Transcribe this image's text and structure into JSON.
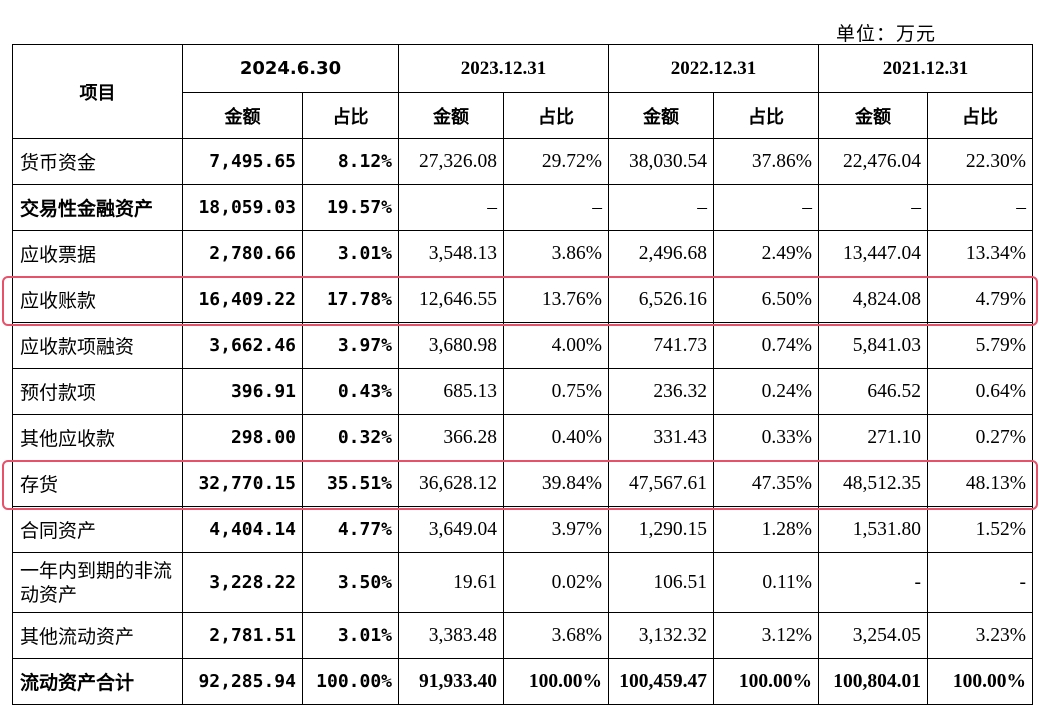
{
  "unit_label": "单位：万元",
  "header": {
    "item_label": "项目",
    "periods": [
      "2024.6.30",
      "2023.12.31",
      "2022.12.31",
      "2021.12.31"
    ],
    "amount_label": "金额",
    "ratio_label": "占比"
  },
  "rows": [
    {
      "label": "货币资金",
      "bold": false,
      "values": [
        "7,495.65",
        "8.12%",
        "27,326.08",
        "29.72%",
        "38,030.54",
        "37.86%",
        "22,476.04",
        "22.30%"
      ]
    },
    {
      "label": "交易性金融资产",
      "bold": true,
      "values": [
        "18,059.03",
        "19.57%",
        "–",
        "–",
        "–",
        "–",
        "–",
        "–"
      ]
    },
    {
      "label": "应收票据",
      "bold": false,
      "values": [
        "2,780.66",
        "3.01%",
        "3,548.13",
        "3.86%",
        "2,496.68",
        "2.49%",
        "13,447.04",
        "13.34%"
      ]
    },
    {
      "label": "应收账款",
      "bold": false,
      "highlight": true,
      "values": [
        "16,409.22",
        "17.78%",
        "12,646.55",
        "13.76%",
        "6,526.16",
        "6.50%",
        "4,824.08",
        "4.79%"
      ]
    },
    {
      "label": "应收款项融资",
      "bold": false,
      "values": [
        "3,662.46",
        "3.97%",
        "3,680.98",
        "4.00%",
        "741.73",
        "0.74%",
        "5,841.03",
        "5.79%"
      ]
    },
    {
      "label": "预付款项",
      "bold": false,
      "values": [
        "396.91",
        "0.43%",
        "685.13",
        "0.75%",
        "236.32",
        "0.24%",
        "646.52",
        "0.64%"
      ]
    },
    {
      "label": "其他应收款",
      "bold": false,
      "values": [
        "298.00",
        "0.32%",
        "366.28",
        "0.40%",
        "331.43",
        "0.33%",
        "271.10",
        "0.27%"
      ]
    },
    {
      "label": "存货",
      "bold": false,
      "highlight": true,
      "values": [
        "32,770.15",
        "35.51%",
        "36,628.12",
        "39.84%",
        "47,567.61",
        "47.35%",
        "48,512.35",
        "48.13%"
      ]
    },
    {
      "label": "合同资产",
      "bold": false,
      "values": [
        "4,404.14",
        "4.77%",
        "3,649.04",
        "3.97%",
        "1,290.15",
        "1.28%",
        "1,531.80",
        "1.52%"
      ]
    },
    {
      "label": "一年内到期的非流动资产",
      "bold": false,
      "wrap": true,
      "values": [
        "3,228.22",
        "3.50%",
        "19.61",
        "0.02%",
        "106.51",
        "0.11%",
        "-",
        "-"
      ]
    },
    {
      "label": "其他流动资产",
      "bold": false,
      "values": [
        "2,781.51",
        "3.01%",
        "3,383.48",
        "3.68%",
        "3,132.32",
        "3.12%",
        "3,254.05",
        "3.23%"
      ]
    },
    {
      "label": "流动资产合计",
      "bold": true,
      "total": true,
      "values": [
        "92,285.94",
        "100.00%",
        "91,933.40",
        "100.00%",
        "100,459.47",
        "100.00%",
        "100,804.01",
        "100.00%"
      ]
    }
  ],
  "colors": {
    "highlight_border": "#e8516a"
  }
}
